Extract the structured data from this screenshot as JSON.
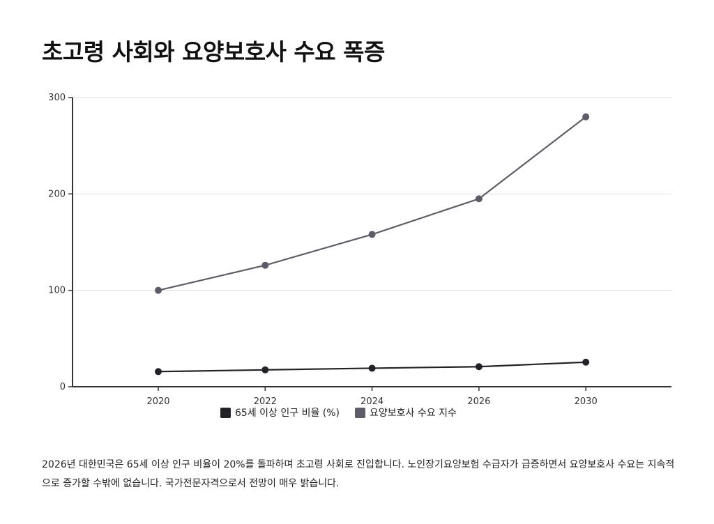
{
  "title": "초고령 사회와 요양보호사 수요 폭증",
  "chart_data": {
    "type": "line",
    "title": "초고령 사회와 요양보호사 수요 폭증",
    "categories": [
      "2020",
      "2022",
      "2024",
      "2026",
      "2030"
    ],
    "series": [
      {
        "name": "65세 이상 인구 비율 (%)",
        "values": [
          15.7,
          17.5,
          19.2,
          20.8,
          25.5
        ],
        "color": "#222228"
      },
      {
        "name": "요양보호사 수요 지수",
        "values": [
          100,
          126,
          158,
          195,
          280
        ],
        "color": "#5e5c68"
      }
    ],
    "yticks": [
      "0",
      "100",
      "200",
      "300"
    ],
    "ylim": [
      0,
      300
    ],
    "grid": true,
    "legend": "bottom",
    "xlabel": "",
    "ylabel": ""
  },
  "caption": "2026년 대한민국은 65세 이상 인구 비율이 20%를 돌파하며 초고령 사회로 진입합니다. 노인장기요양보험 수급자가 급증하면서 요양보호사 수요는 지속적으로 증가할 수밖에 없습니다. 국가전문자격으로서 전망이 매우 밝습니다."
}
